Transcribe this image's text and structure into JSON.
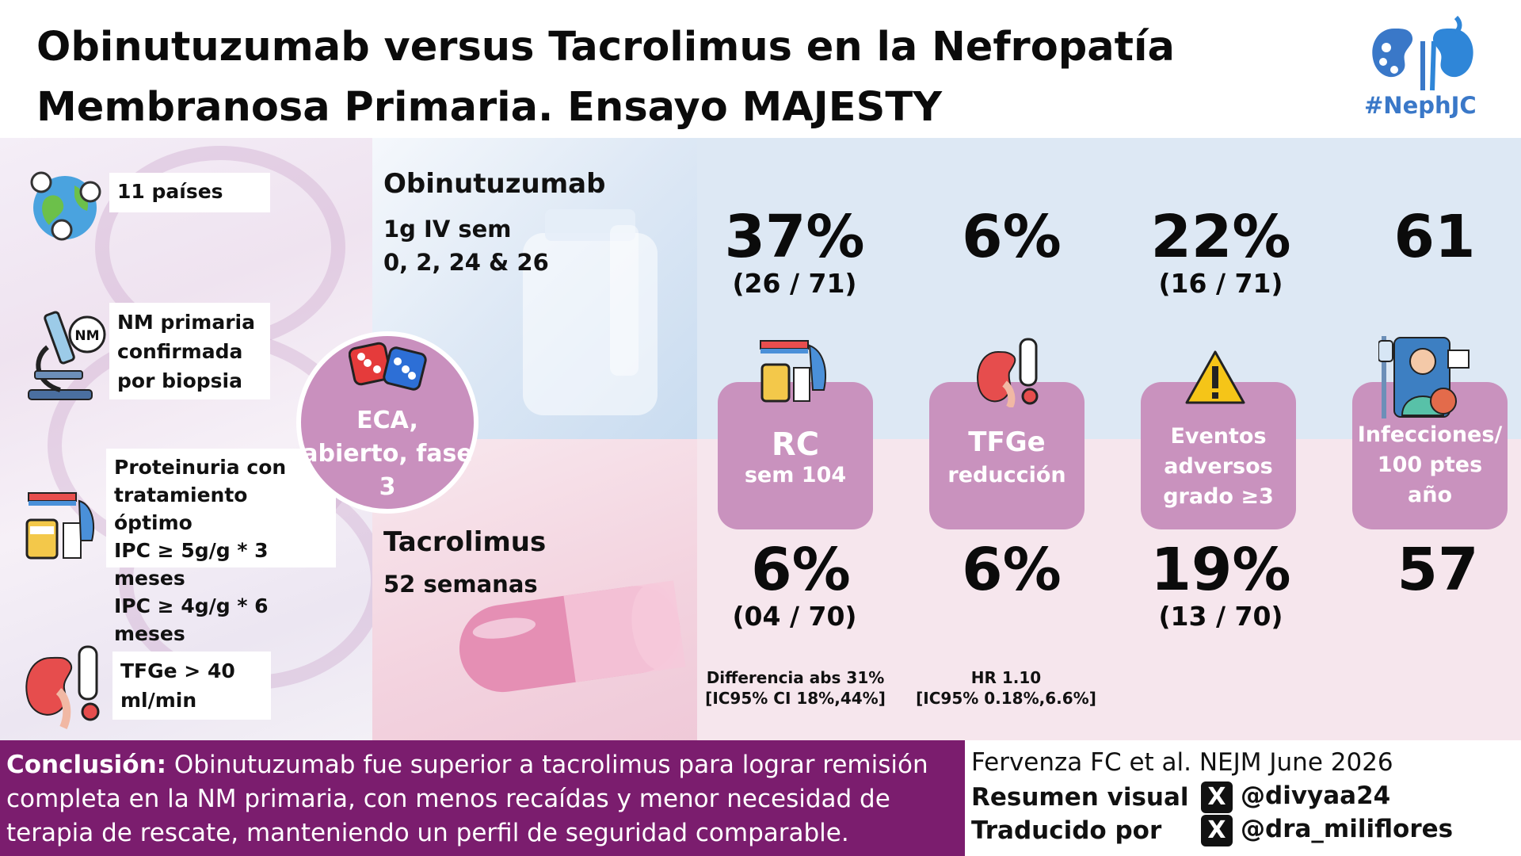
{
  "header": {
    "title_line1": "Obinutuzumab versus Tacrolimus en la Nefropatía",
    "title_line2": "Membranosa Primaria. Ensayo MAJESTY",
    "logo_tag": "#NephJC"
  },
  "population": {
    "countries": "11 países",
    "biopsy_line1": "NM primaria",
    "biopsy_line2": "confirmada",
    "biopsy_line3": "por biopsia",
    "microscope_badge": "NM",
    "proteinuria_line1": "Proteinuria con",
    "proteinuria_line2": "tratamiento óptimo",
    "proteinuria_line3": "IPC ≥ 5g/g * 3 meses",
    "proteinuria_line4": "IPC ≥ 4g/g * 6 meses",
    "egfr_line1": "TFGe > 40",
    "egfr_line2": "ml/min"
  },
  "design": {
    "obinutuzumab_title": "Obinutuzumab",
    "obinutuzumab_dose_line1": "1g IV sem",
    "obinutuzumab_dose_line2": "0, 2, 24 & 26",
    "tacrolimus_title": "Tacrolimus",
    "tacrolimus_duration": "52 semanas",
    "trial_line1": "ECA,",
    "trial_line2": "abierto, fase",
    "trial_line3": "3"
  },
  "outcomes": {
    "cr": {
      "label_line1": "RC",
      "label_line2": "sem 104",
      "obinutuzumab_value": "37%",
      "obinutuzumab_fraction": "(26 / 71)",
      "tacrolimus_value": "6%",
      "tacrolimus_fraction": "(04 / 70)",
      "note_line1": "Differencia abs 31%",
      "note_line2": "[IC95% CI 18%,44%]"
    },
    "egfr": {
      "label_line1": "TFGe",
      "label_line2": "reducción",
      "obinutuzumab_value": "6%",
      "tacrolimus_value": "6%",
      "note_line1": "HR 1.10",
      "note_line2": "[IC95% 0.18%,6.6%]"
    },
    "adverse": {
      "label_line1": "Eventos",
      "label_line2": "adversos",
      "label_line3": "grado ≥3",
      "obinutuzumab_value": "22%",
      "obinutuzumab_fraction": "(16 / 71)",
      "tacrolimus_value": "19%",
      "tacrolimus_fraction": "(13 / 70)"
    },
    "infections": {
      "label_line1": "Infecciones/",
      "label_line2": "100 ptes año",
      "obinutuzumab_value": "61",
      "tacrolimus_value": "57"
    }
  },
  "footer": {
    "conclusion_label": "Conclusión:",
    "conclusion_text": " Obinutuzumab fue superior a tacrolimus para lograr remisión completa en la NM primaria, con menos recaídas y menor necesidad de terapia de rescate, manteniendo un perfil de seguridad comparable.",
    "citation": "Fervenza FC et al. NEJM June 2026",
    "visual_label": "Resumen visual",
    "visual_handle": "@divyaa24",
    "translated_label": "Traducido por",
    "translated_handle": "@dra_miliflores",
    "x_glyph": "X"
  },
  "icons": {
    "globe": "globe-people-icon",
    "microscope": "microscope-icon",
    "urine_test": "urine-test-icon",
    "kidney": "kidney-icon",
    "dice": "dice-icon",
    "warning": "warning-icon",
    "patient": "patient-iv-icon"
  },
  "colors": {
    "card": "#c992be",
    "conclusion_bg": "#7b1d6e",
    "top_band": "#dde8f4",
    "bottom_band": "#f6e6ed",
    "logo_blue": "#3a78c8"
  }
}
